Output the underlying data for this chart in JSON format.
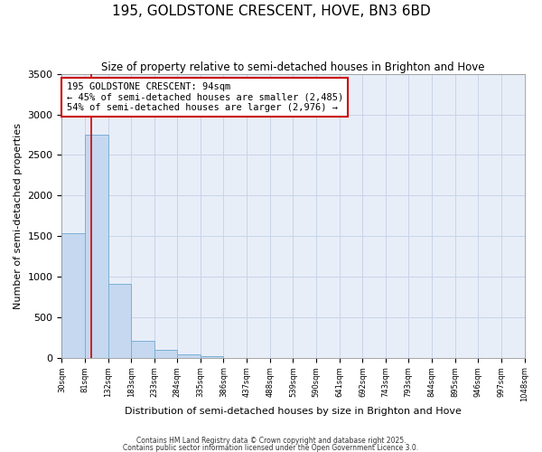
{
  "title": "195, GOLDSTONE CRESCENT, HOVE, BN3 6BD",
  "subtitle": "Size of property relative to semi-detached houses in Brighton and Hove",
  "xlabel": "Distribution of semi-detached houses by size in Brighton and Hove",
  "ylabel": "Number of semi-detached properties",
  "bins": [
    30,
    81,
    132,
    183,
    233,
    284,
    335,
    386,
    437,
    488,
    539,
    590,
    641,
    692,
    743,
    793,
    844,
    895,
    946,
    997,
    1048
  ],
  "bin_labels": [
    "30sqm",
    "81sqm",
    "132sqm",
    "183sqm",
    "233sqm",
    "284sqm",
    "335sqm",
    "386sqm",
    "437sqm",
    "488sqm",
    "539sqm",
    "590sqm",
    "641sqm",
    "692sqm",
    "743sqm",
    "793sqm",
    "844sqm",
    "895sqm",
    "946sqm",
    "997sqm",
    "1048sqm"
  ],
  "counts": [
    1530,
    2750,
    910,
    210,
    100,
    40,
    20,
    0,
    0,
    0,
    0,
    0,
    0,
    0,
    0,
    0,
    0,
    0,
    0,
    0
  ],
  "bar_color": "#c5d8f0",
  "bar_edge_color": "#7bafd4",
  "property_size": 94,
  "property_line_color": "#cc0000",
  "ylim": [
    0,
    3500
  ],
  "annotation_line1": "195 GOLDSTONE CRESCENT: 94sqm",
  "annotation_line2": "← 45% of semi-detached houses are smaller (2,485)",
  "annotation_line3": "54% of semi-detached houses are larger (2,976) →",
  "annotation_box_color": "#ffffff",
  "annotation_edge_color": "#cc0000",
  "footer1": "Contains HM Land Registry data © Crown copyright and database right 2025.",
  "footer2": "Contains public sector information licensed under the Open Government Licence 3.0.",
  "bg_color": "#ffffff",
  "plot_bg_color": "#e8eef8",
  "grid_color": "#c8d4e8"
}
